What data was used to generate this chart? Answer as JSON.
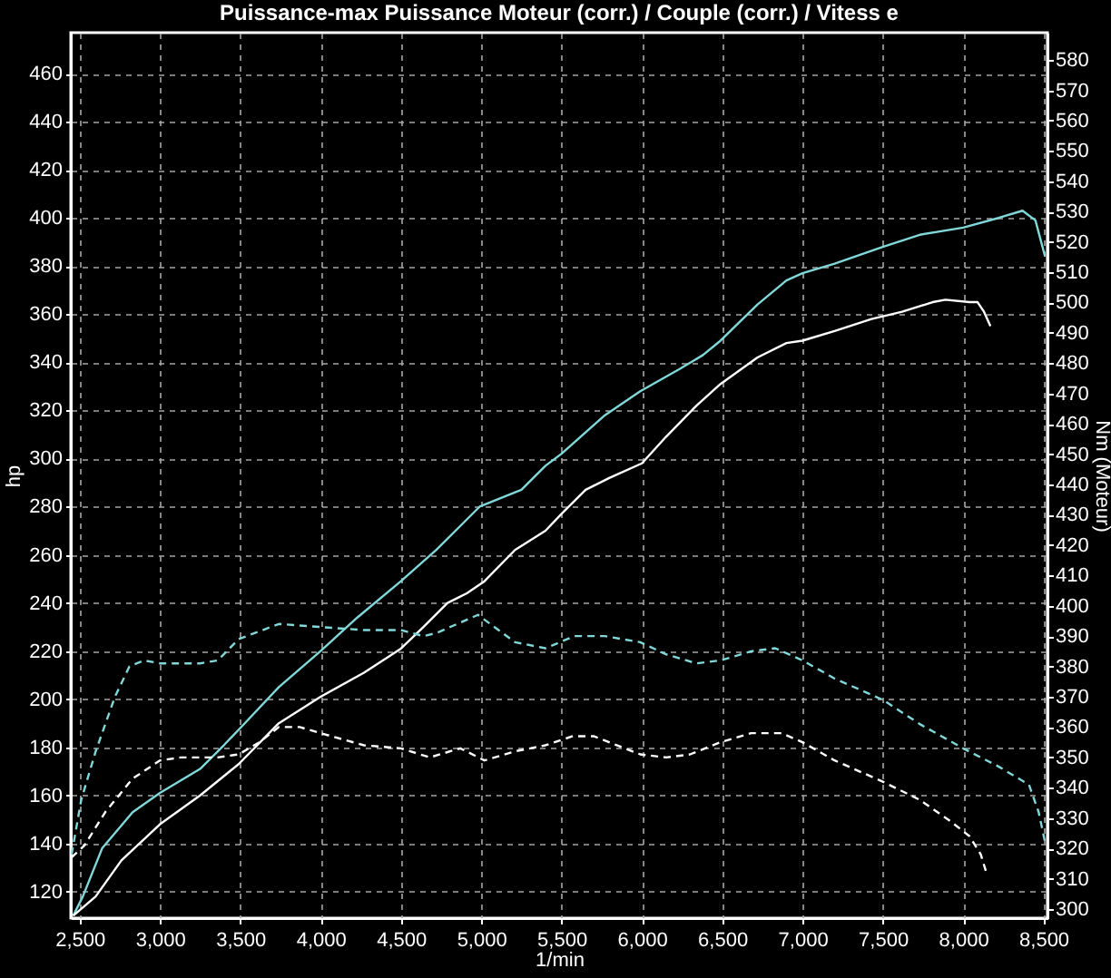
{
  "chart_data": {
    "type": "line",
    "title": "Puissance-max Puissance Moteur (corr.) / Couple (corr.) / Vitess e",
    "xlabel": "1/min",
    "ylabel": "hp",
    "y2label": "Nm (Moteur)",
    "xlim": [
      2445,
      8525
    ],
    "ylim": [
      109,
      477
    ],
    "y2lim": [
      297,
      589
    ],
    "xticks": [
      {
        "value": 2500,
        "label": "2,500"
      },
      {
        "value": 3000,
        "label": "3,000"
      },
      {
        "value": 3500,
        "label": "3,500"
      },
      {
        "value": 4000,
        "label": "4,000"
      },
      {
        "value": 4500,
        "label": "4,500"
      },
      {
        "value": 5000,
        "label": "5,000"
      },
      {
        "value": 5500,
        "label": "5,500"
      },
      {
        "value": 6000,
        "label": "6,000"
      },
      {
        "value": 6500,
        "label": "6,500"
      },
      {
        "value": 7000,
        "label": "7,000"
      },
      {
        "value": 7500,
        "label": "7,500"
      },
      {
        "value": 8000,
        "label": "8,000"
      },
      {
        "value": 8500,
        "label": "8,500"
      }
    ],
    "yticks": [
      120,
      140,
      160,
      180,
      200,
      220,
      240,
      260,
      280,
      300,
      320,
      340,
      360,
      380,
      400,
      420,
      440,
      460
    ],
    "y2ticks": [
      300,
      310,
      320,
      330,
      340,
      350,
      360,
      370,
      380,
      390,
      400,
      410,
      420,
      430,
      440,
      450,
      460,
      470,
      480,
      490,
      500,
      510,
      520,
      530,
      540,
      550,
      560,
      570,
      580
    ],
    "grid": true,
    "series": [
      {
        "color": "#80d8d8",
        "line_style": "solid",
        "axis": "y",
        "x": [
          2460,
          2520,
          2640,
          2830,
          3000,
          3250,
          3400,
          3500,
          3740,
          4000,
          4230,
          4500,
          4720,
          4990,
          5250,
          5400,
          5500,
          5770,
          5990,
          6230,
          6380,
          6490,
          6720,
          6900,
          7000,
          7200,
          7500,
          7730,
          8000,
          8220,
          8370,
          8450,
          8510
        ],
        "values": [
          110,
          118,
          138,
          153,
          161,
          171,
          181,
          188,
          205,
          220,
          234,
          249,
          262,
          280,
          287,
          297,
          302,
          318,
          328,
          337,
          343,
          349,
          364,
          374,
          377,
          381,
          388,
          393,
          396,
          400,
          403,
          399,
          384
        ]
      },
      {
        "color": "#ffffff",
        "line_style": "solid",
        "axis": "y",
        "x": [
          2460,
          2600,
          2760,
          3000,
          3250,
          3490,
          3740,
          4000,
          4270,
          4500,
          4640,
          4790,
          4910,
          5020,
          5210,
          5400,
          5500,
          5650,
          5800,
          6000,
          6150,
          6340,
          6490,
          6720,
          6900,
          7000,
          7200,
          7430,
          7620,
          7810,
          7890,
          8040,
          8090,
          8130,
          8170
        ],
        "values": [
          110,
          118,
          133,
          148,
          160,
          173,
          190,
          201,
          211,
          221,
          230,
          240,
          244,
          249,
          262,
          270,
          277,
          287,
          292,
          298,
          309,
          322,
          331,
          342,
          348,
          349,
          353,
          358,
          361,
          365,
          366,
          365,
          365,
          361,
          355
        ]
      },
      {
        "color": "#80d8d8",
        "line_style": "dashed",
        "axis": "y2",
        "x": [
          2450,
          2510,
          2600,
          2720,
          2810,
          2900,
          3000,
          3250,
          3360,
          3490,
          3740,
          4000,
          4270,
          4500,
          4640,
          4720,
          4980,
          5210,
          5400,
          5580,
          5770,
          5990,
          6150,
          6340,
          6490,
          6680,
          6830,
          7000,
          7200,
          7500,
          7730,
          8000,
          8220,
          8410,
          8470,
          8510
        ],
        "values": [
          318,
          336,
          352,
          370,
          380,
          382,
          381,
          381,
          382,
          389,
          394,
          393,
          392,
          392,
          390,
          391,
          397,
          388,
          386,
          390,
          390,
          388,
          384,
          381,
          382,
          385,
          386,
          382,
          376,
          369,
          361,
          353,
          347,
          341,
          332,
          322
        ]
      },
      {
        "color": "#ffffff",
        "line_style": "dashed",
        "axis": "y2",
        "x": [
          2450,
          2530,
          2660,
          2830,
          3000,
          3130,
          3360,
          3490,
          3620,
          3740,
          3870,
          4000,
          4270,
          4500,
          4680,
          4870,
          5020,
          5210,
          5400,
          5570,
          5700,
          5990,
          6150,
          6300,
          6490,
          6680,
          6870,
          7000,
          7200,
          7500,
          7730,
          7920,
          8040,
          8110,
          8150
        ],
        "values": [
          317,
          321,
          332,
          343,
          349,
          350,
          350,
          351,
          355,
          360,
          360,
          358,
          354,
          353,
          350,
          353,
          349,
          352,
          354,
          357,
          357,
          351,
          350,
          351,
          355,
          358,
          358,
          355,
          349,
          342,
          336,
          329,
          324,
          318,
          311
        ]
      }
    ]
  }
}
